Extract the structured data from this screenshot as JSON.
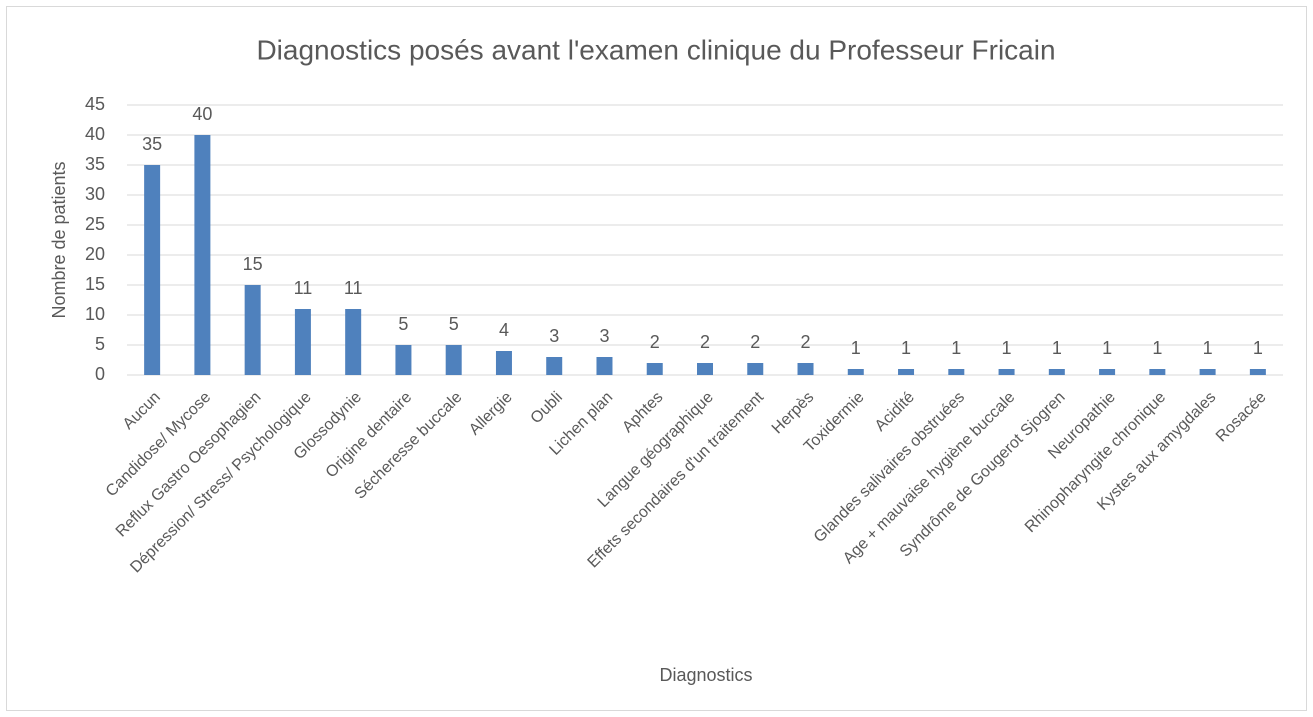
{
  "chart_data": {
    "type": "bar",
    "title": "Diagnostics posés avant l'examen clinique du Professeur Fricain",
    "x_label": "Diagnostics",
    "y_label": "Nombre de patients",
    "categories": [
      "Aucun",
      "Candidose/ Mycose",
      "Reflux Gastro Oesophagien",
      "Dépression/ Stress/ Psychologique",
      "Glossodynie",
      "Origine dentaire",
      "Sécheresse buccale",
      "Allergie",
      "Oubli",
      "Lichen plan",
      "Aphtes",
      "Langue géographique",
      "Effets secondaires d'un traitement",
      "Herpès",
      "Toxidermie",
      "Acidité",
      "Glandes salivaires obstruées",
      "Age + mauvaise hygiène buccale",
      "Syndrôme de Gougerot Sjogren",
      "Neuropathie",
      "Rhinopharyngite chronique",
      "Kystes aux amygdales",
      "Rosacée"
    ],
    "values": [
      35,
      40,
      15,
      11,
      11,
      5,
      5,
      4,
      3,
      3,
      2,
      2,
      2,
      2,
      1,
      1,
      1,
      1,
      1,
      1,
      1,
      1,
      1
    ],
    "color": "#4f81bd",
    "ylim": [
      0,
      45
    ],
    "yticks": [
      0,
      5,
      10,
      15,
      20,
      25,
      30,
      35,
      40,
      45
    ],
    "grid": true
  }
}
